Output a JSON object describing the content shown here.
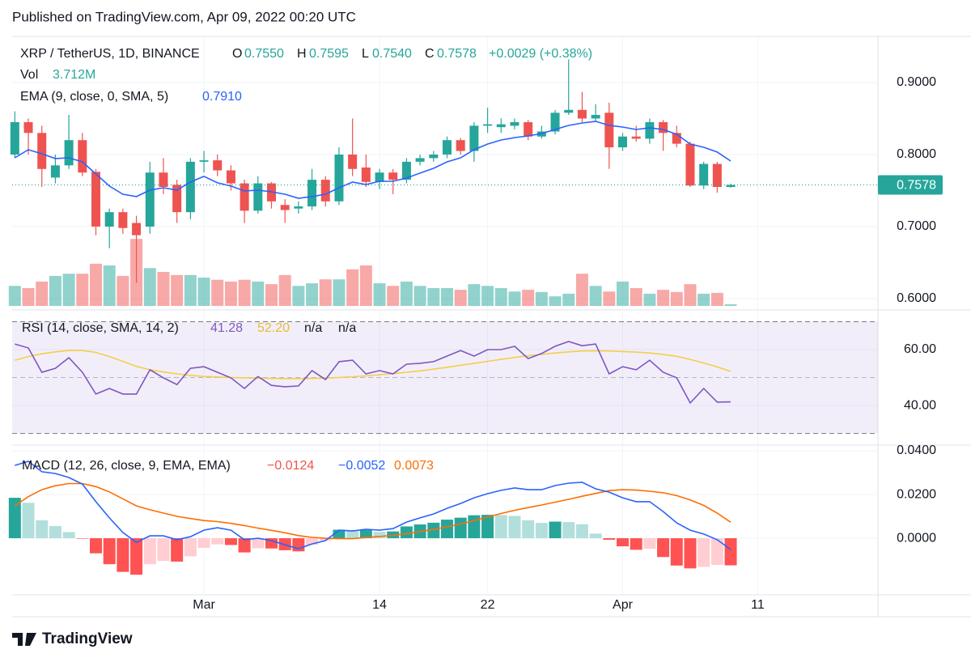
{
  "published": "Published on TradingView.com, Apr 09, 2022 00:20 UTC",
  "footer": "TradingView",
  "chart_data": [
    {
      "type": "candlestick",
      "title": "XRP / TetherUS, 1D, BINANCE",
      "ohlc_legend": [
        {
          "key": "O",
          "value": "0.7550"
        },
        {
          "key": "H",
          "value": "0.7595"
        },
        {
          "key": "L",
          "value": "0.7540"
        },
        {
          "key": "C",
          "value": "0.7578"
        }
      ],
      "change": "+0.0029 (+0.38%)",
      "volume_legend": {
        "name": "Vol",
        "value": "3.712M"
      },
      "x": [
        46,
        47,
        48,
        49,
        50,
        51,
        52,
        53,
        54,
        55,
        56,
        57,
        58,
        59,
        60,
        61,
        62,
        63,
        64,
        65,
        66,
        67,
        68,
        69,
        70,
        71,
        72,
        73,
        74,
        75,
        76,
        77,
        78,
        79,
        80,
        81,
        82,
        83,
        84,
        85,
        86,
        87,
        88,
        89,
        90,
        91,
        92,
        93,
        94,
        95,
        96,
        97,
        98,
        99
      ],
      "open": [
        0.8,
        0.845,
        0.83,
        0.768,
        0.785,
        0.82,
        0.776,
        0.7,
        0.72,
        0.705,
        0.7,
        0.775,
        0.758,
        0.72,
        0.79,
        0.792,
        0.778,
        0.76,
        0.722,
        0.76,
        0.73,
        0.725,
        0.728,
        0.765,
        0.735,
        0.8,
        0.782,
        0.762,
        0.775,
        0.765,
        0.79,
        0.795,
        0.8,
        0.82,
        0.805,
        0.84,
        0.838,
        0.84,
        0.845,
        0.825,
        0.832,
        0.858,
        0.862,
        0.85,
        0.858,
        0.81,
        0.825,
        0.822,
        0.845,
        0.83,
        0.815,
        0.757,
        0.787,
        0.755
      ],
      "high": [
        0.86,
        0.85,
        0.84,
        0.8,
        0.855,
        0.83,
        0.78,
        0.725,
        0.725,
        0.715,
        0.79,
        0.795,
        0.765,
        0.795,
        0.805,
        0.8,
        0.785,
        0.765,
        0.77,
        0.762,
        0.738,
        0.735,
        0.78,
        0.77,
        0.81,
        0.85,
        0.8,
        0.78,
        0.78,
        0.795,
        0.8,
        0.805,
        0.825,
        0.823,
        0.845,
        0.865,
        0.85,
        0.85,
        0.848,
        0.84,
        0.862,
        0.932,
        0.887,
        0.87,
        0.872,
        0.83,
        0.84,
        0.85,
        0.848,
        0.84,
        0.818,
        0.79,
        0.79,
        0.7595
      ],
      "low": [
        0.795,
        0.8,
        0.755,
        0.76,
        0.78,
        0.77,
        0.688,
        0.67,
        0.69,
        0.622,
        0.69,
        0.745,
        0.705,
        0.71,
        0.775,
        0.77,
        0.75,
        0.705,
        0.718,
        0.725,
        0.705,
        0.718,
        0.723,
        0.728,
        0.73,
        0.77,
        0.755,
        0.752,
        0.745,
        0.76,
        0.785,
        0.79,
        0.795,
        0.8,
        0.79,
        0.83,
        0.83,
        0.835,
        0.82,
        0.822,
        0.828,
        0.855,
        0.845,
        0.845,
        0.78,
        0.805,
        0.818,
        0.815,
        0.805,
        0.81,
        0.755,
        0.752,
        0.747,
        0.754
      ],
      "close": [
        0.845,
        0.83,
        0.78,
        0.785,
        0.82,
        0.775,
        0.7,
        0.72,
        0.698,
        0.688,
        0.775,
        0.755,
        0.72,
        0.79,
        0.792,
        0.778,
        0.76,
        0.722,
        0.76,
        0.735,
        0.723,
        0.728,
        0.765,
        0.735,
        0.8,
        0.78,
        0.762,
        0.775,
        0.765,
        0.79,
        0.795,
        0.8,
        0.82,
        0.805,
        0.84,
        0.842,
        0.842,
        0.845,
        0.825,
        0.832,
        0.858,
        0.862,
        0.85,
        0.855,
        0.81,
        0.825,
        0.822,
        0.845,
        0.83,
        0.815,
        0.757,
        0.787,
        0.755,
        0.7578
      ],
      "volume": [
        46,
        41,
        56,
        69,
        74,
        74,
        97,
        93,
        69,
        154,
        87,
        78,
        71,
        71,
        65,
        60,
        56,
        60,
        56,
        50,
        71,
        46,
        52,
        61,
        61,
        84,
        93,
        52,
        46,
        56,
        46,
        41,
        41,
        37,
        50,
        46,
        41,
        33,
        37,
        32,
        22,
        28,
        74,
        46,
        33,
        56,
        41,
        28,
        37,
        32,
        50,
        28,
        30,
        3.712
      ],
      "up_color": "#26a69a",
      "down_color": "#ef5350",
      "series": [
        {
          "name": "EMA (9, close, 0, SMA, 5)",
          "color": "#2962ff",
          "value_label": "0.7910",
          "values": [
            0.7955,
            0.8067,
            0.8011,
            0.7944,
            0.7955,
            0.7899,
            0.773,
            0.7562,
            0.7449,
            0.7416,
            0.7506,
            0.7539,
            0.7506,
            0.7618,
            0.7697,
            0.7607,
            0.7562,
            0.7494,
            0.7506,
            0.7483,
            0.7449,
            0.7393,
            0.7416,
            0.7449,
            0.7539,
            0.7618,
            0.7584,
            0.7629,
            0.7629,
            0.7674,
            0.7742,
            0.7809,
            0.7899,
            0.7955,
            0.8067,
            0.8146,
            0.8202,
            0.8236,
            0.8258,
            0.8292,
            0.8348,
            0.8404,
            0.8438,
            0.8461,
            0.8404,
            0.8382,
            0.8348,
            0.8371,
            0.8348,
            0.8281,
            0.8146,
            0.8101,
            0.8034,
            0.791
          ]
        }
      ],
      "last_price_label": "0.7578",
      "xlim": [
        45.8,
        109.9
      ],
      "xticks": [
        {
          "value": 60,
          "label": "Mar"
        },
        {
          "value": 73,
          "label": "14"
        },
        {
          "value": 81,
          "label": "22"
        },
        {
          "value": 91,
          "label": "Apr"
        },
        {
          "value": 101,
          "label": "11"
        }
      ],
      "ylim": [
        0.5876,
        0.964
      ],
      "yticks": [
        {
          "value": 0.9,
          "label": "0.9000"
        },
        {
          "value": 0.8,
          "label": "0.8000"
        },
        {
          "value": 0.7,
          "label": "0.7000"
        },
        {
          "value": 0.6,
          "label": "0.6000"
        }
      ],
      "volume_ylim": [
        0,
        279
      ],
      "grid": true
    },
    {
      "type": "line",
      "title": "RSI (14, close, SMA, 14, 2)",
      "legend_values": [
        "41.28",
        "52.20",
        "n/a",
        "n/a"
      ],
      "series": [
        {
          "color": "#7e57c2",
          "values": [
            62.0,
            60.6,
            51.9,
            53.3,
            57.1,
            51.9,
            44.1,
            46.1,
            44.1,
            44.1,
            52.8,
            49.9,
            47.5,
            53.3,
            53.9,
            51.9,
            49.9,
            46.1,
            50.4,
            47.2,
            46.7,
            47.0,
            52.5,
            49.3,
            55.7,
            56.2,
            51.3,
            52.5,
            51.3,
            54.8,
            55.1,
            55.7,
            57.7,
            59.7,
            57.7,
            60.0,
            60.0,
            61.2,
            56.8,
            58.6,
            61.2,
            62.9,
            61.4,
            62.0,
            51.3,
            53.9,
            52.8,
            56.2,
            51.9,
            49.9,
            40.9,
            46.1,
            41.2,
            41.28
          ]
        },
        {
          "color": "#f2cf4a",
          "values": [
            56.2,
            57.5,
            58.5,
            59.2,
            59.7,
            59.7,
            59,
            57.5,
            55.8,
            54,
            52.8,
            52,
            51.3,
            50.8,
            50.4,
            50.2,
            50,
            49.9,
            49.8,
            49.7,
            49.6,
            49.6,
            49.7,
            49.8,
            50,
            50.3,
            50.6,
            51,
            51.4,
            51.9,
            52.4,
            53,
            53.7,
            54.4,
            55.1,
            55.8,
            56.5,
            57.2,
            57.8,
            58.3,
            58.8,
            59.2,
            59.5,
            59.6,
            59.5,
            59.3,
            59.1,
            58.8,
            58.3,
            57.6,
            56.5,
            55.2,
            53.8,
            52.2
          ]
        }
      ],
      "bands": [
        70,
        50,
        30
      ],
      "band_fill": "#7e57c2",
      "ylim": [
        26.4,
        74.2
      ],
      "yticks": [
        {
          "value": 60,
          "label": "60.00"
        },
        {
          "value": 40,
          "label": "40.00"
        }
      ]
    },
    {
      "type": "macd",
      "title": "MACD (12, 26, close, 9, EMA, EMA)",
      "legend_values": [
        "−0.0124",
        "−0.0052",
        "0.0073"
      ],
      "histogram": {
        "colors": [
          "#26a69a",
          "#b2dfdb",
          "#ff5252",
          "#ffcdd2"
        ],
        "values": [
          0.0185,
          0.0162,
          0.0082,
          0.0056,
          0.0028,
          -0.0002,
          -0.0069,
          -0.0119,
          -0.0154,
          -0.0167,
          -0.0119,
          -0.0104,
          -0.0107,
          -0.0083,
          -0.0044,
          -0.0028,
          -0.0031,
          -0.0065,
          -0.0046,
          -0.0047,
          -0.0055,
          -0.006,
          -0.003,
          -0.0011,
          0.0039,
          0.0035,
          0.0038,
          0.0029,
          0.0031,
          0.0054,
          0.0063,
          0.0071,
          0.0085,
          0.0094,
          0.0105,
          0.0107,
          0.0106,
          0.0102,
          0.0082,
          0.007,
          0.0076,
          0.0074,
          0.0064,
          0.0021,
          -0.0007,
          -0.0037,
          -0.0053,
          -0.0048,
          -0.0086,
          -0.0125,
          -0.0138,
          -0.0131,
          -0.0122,
          -0.0124
        ]
      },
      "series": [
        {
          "color": "#2962ff",
          "values": [
            0.0333,
            0.0352,
            0.0304,
            0.0296,
            0.0278,
            0.0248,
            0.0167,
            0.0093,
            0.0026,
            -0.0019,
            0.0011,
            0.0011,
            -0.0007,
            0.0007,
            0.0037,
            0.0048,
            0.0037,
            -0.0007,
            0,
            -0.0011,
            -0.003,
            -0.0048,
            -0.0026,
            -0.0011,
            0.0037,
            0.0033,
            0.0041,
            0.0037,
            0.0044,
            0.0074,
            0.0093,
            0.0111,
            0.0137,
            0.0159,
            0.0185,
            0.0204,
            0.0219,
            0.023,
            0.0222,
            0.0222,
            0.0241,
            0.0252,
            0.0256,
            0.0226,
            0.0211,
            0.0185,
            0.0167,
            0.0167,
            0.0122,
            0.007,
            0.0037,
            0.0019,
            -0.0007,
            -0.0052
          ]
        },
        {
          "color": "#ff6d00",
          "values": [
            0.0148,
            0.019,
            0.0222,
            0.024,
            0.025,
            0.025,
            0.0236,
            0.0212,
            0.018,
            0.0148,
            0.013,
            0.0115,
            0.01,
            0.009,
            0.0081,
            0.0076,
            0.0068,
            0.0058,
            0.0046,
            0.0036,
            0.0025,
            0.0012,
            0.0004,
            0,
            -0.0002,
            -0.0002,
            0.0003,
            0.0008,
            0.0013,
            0.002,
            0.003,
            0.004,
            0.0052,
            0.0065,
            0.008,
            0.0097,
            0.0113,
            0.0128,
            0.014,
            0.0152,
            0.0165,
            0.0178,
            0.0192,
            0.0205,
            0.0218,
            0.0222,
            0.022,
            0.0215,
            0.0208,
            0.0195,
            0.0175,
            0.015,
            0.0115,
            0.0073
          ]
        }
      ],
      "ylim": [
        -0.0259,
        0.0426
      ],
      "yticks": [
        {
          "value": 0.04,
          "label": "0.0400"
        },
        {
          "value": 0.02,
          "label": "0.0200"
        },
        {
          "value": 0,
          "label": "0.0000"
        }
      ]
    }
  ]
}
